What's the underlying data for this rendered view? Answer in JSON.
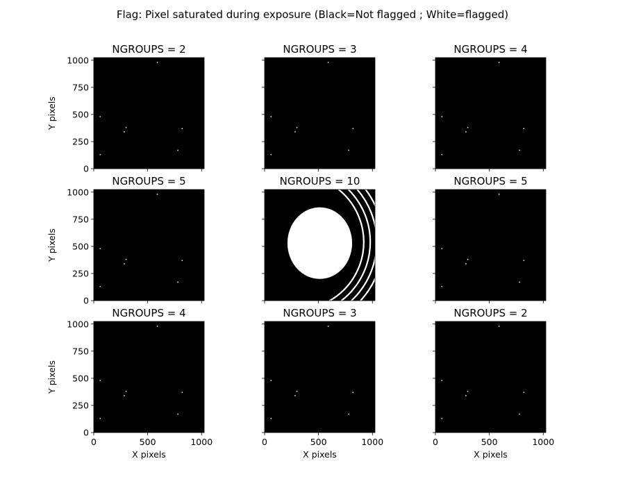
{
  "figure": {
    "title": "Flag: Pixel saturated during exposure (Black=Not flagged ; White=flagged)"
  },
  "colors": {
    "flagged": "#ffffff",
    "not_flagged": "#000000"
  },
  "chart_data": {
    "type": "heatmap",
    "colormap": "gray",
    "xlabel": "X pixels",
    "ylabel": "Y pixels",
    "xlim": [
      0,
      1024
    ],
    "ylim": [
      0,
      1024
    ],
    "xticks": [
      0,
      500,
      1000
    ],
    "yticks": [
      0,
      250,
      500,
      750,
      1000
    ],
    "panels": [
      {
        "title": "NGROUPS = 2",
        "ngroups": 2
      },
      {
        "title": "NGROUPS = 3",
        "ngroups": 3
      },
      {
        "title": "NGROUPS = 4",
        "ngroups": 4
      },
      {
        "title": "NGROUPS = 5",
        "ngroups": 5
      },
      {
        "title": "NGROUPS = 10",
        "ngroups": 10
      },
      {
        "title": "NGROUPS = 5",
        "ngroups": 5
      },
      {
        "title": "NGROUPS = 4",
        "ngroups": 4
      },
      {
        "title": "NGROUPS = 3",
        "ngroups": 3
      },
      {
        "title": "NGROUPS = 2",
        "ngroups": 2
      }
    ],
    "flag_regions": {
      "isolated_pixels": [
        [
          283,
          340
        ],
        [
          300,
          380
        ],
        [
          820,
          370
        ],
        [
          780,
          170
        ],
        [
          60,
          130
        ],
        [
          590,
          980
        ],
        [
          60,
          480
        ]
      ],
      "saturated_core": {
        "center": [
          512,
          530
        ],
        "rx": 300,
        "ry": 330
      },
      "saturated_rings": {
        "center": [
          300,
          540
        ],
        "radii": [
          620,
          680,
          740,
          800
        ]
      }
    }
  }
}
